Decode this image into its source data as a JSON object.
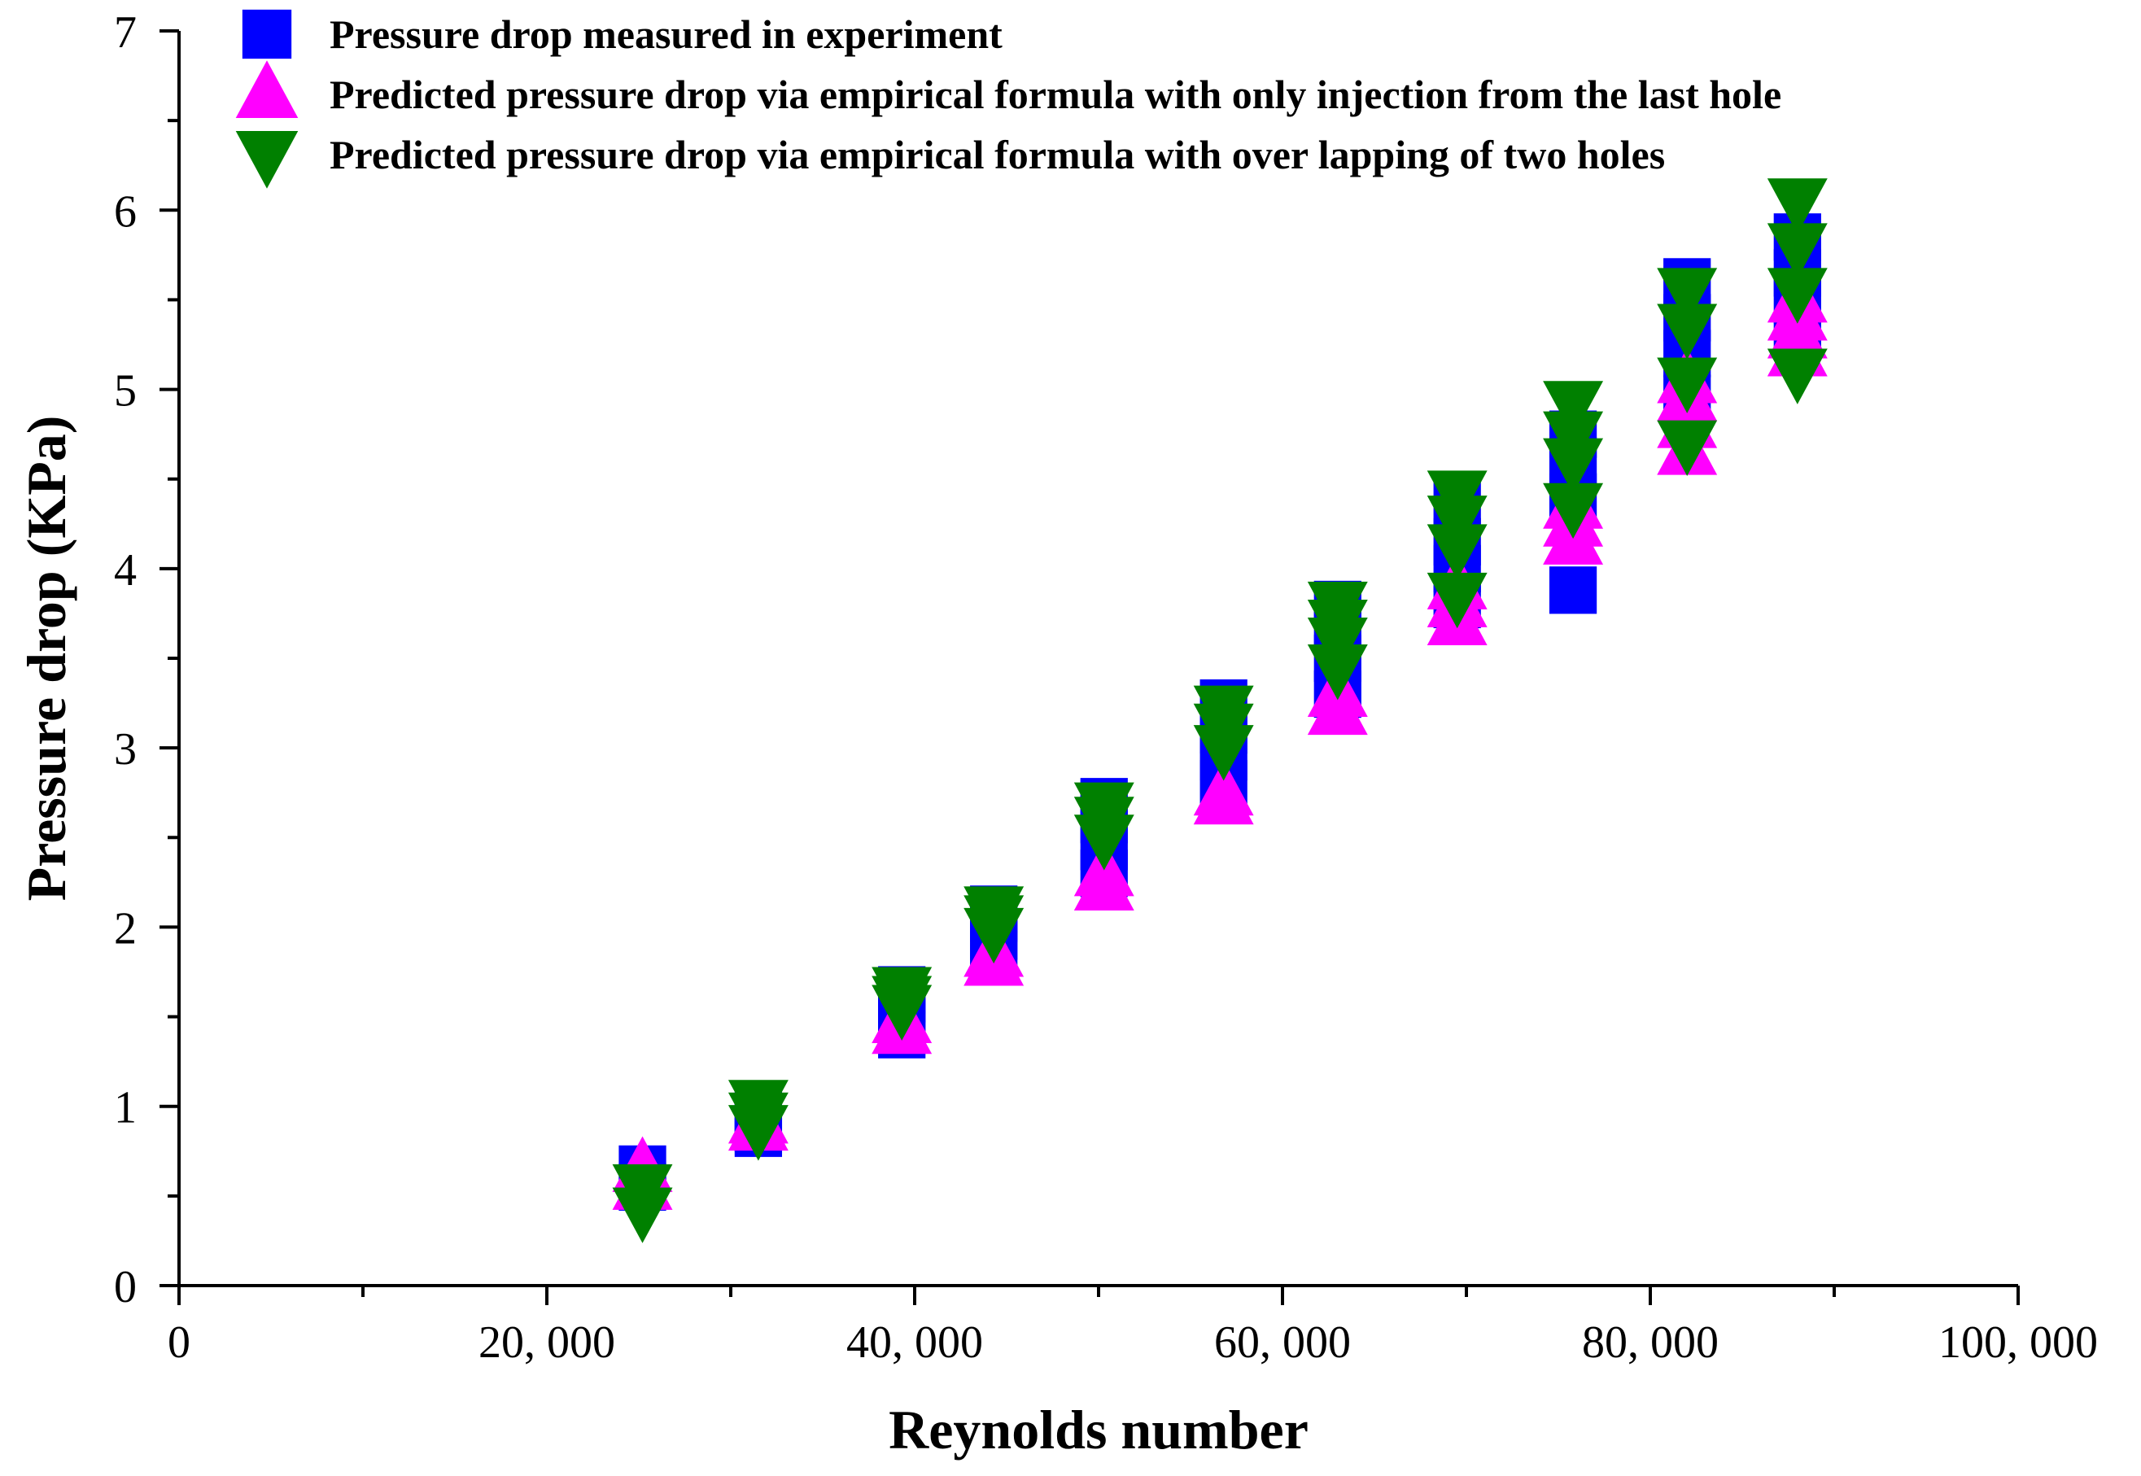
{
  "chart_data": {
    "type": "scatter",
    "title": "",
    "xlabel": "Reynolds number",
    "ylabel": "Pressure drop (KPa)",
    "xlim": [
      0,
      100000
    ],
    "ylim": [
      0,
      7
    ],
    "x_ticks": [
      0,
      20000,
      40000,
      60000,
      80000,
      100000
    ],
    "x_tick_labels": [
      "0",
      "20, 000",
      "40, 000",
      "60, 000",
      "80, 000",
      "100, 000"
    ],
    "y_ticks": [
      0,
      1,
      2,
      3,
      4,
      5,
      6,
      7
    ],
    "y_tick_labels": [
      "0",
      "1",
      "2",
      "3",
      "4",
      "5",
      "6",
      "7"
    ],
    "grid": false,
    "legend_position": "top-left",
    "series": [
      {
        "name": "Pressure drop measured in experiment",
        "marker": "square",
        "color": "#0000ff",
        "x": [
          25200,
          25200,
          31500,
          31500,
          31500,
          39300,
          39300,
          39300,
          39300,
          44300,
          44300,
          44300,
          44300,
          50300,
          50300,
          50300,
          50300,
          56800,
          56800,
          56800,
          56800,
          63000,
          63000,
          63000,
          63000,
          69500,
          69500,
          69500,
          69500,
          75800,
          75800,
          75800,
          75800,
          82000,
          82000,
          82000,
          82000,
          88000,
          88000,
          88000,
          88000
        ],
        "y": [
          0.65,
          0.55,
          0.95,
          0.88,
          0.85,
          1.4,
          1.5,
          1.6,
          1.65,
          1.85,
          1.95,
          2.05,
          2.1,
          2.3,
          2.45,
          2.6,
          2.7,
          2.8,
          2.95,
          3.1,
          3.25,
          3.3,
          3.5,
          3.65,
          3.8,
          3.8,
          4.0,
          4.15,
          4.35,
          3.88,
          4.4,
          4.6,
          4.75,
          4.95,
          5.2,
          5.4,
          5.6,
          5.3,
          5.5,
          5.65,
          5.85
        ]
      },
      {
        "name": "Predicted pressure drop via empirical formula with only injection from the last hole",
        "marker": "triangle-up",
        "color": "#ff00ff",
        "x": [
          25200,
          25200,
          31500,
          31500,
          39300,
          39300,
          44300,
          44300,
          50300,
          50300,
          56800,
          56800,
          63000,
          63000,
          69500,
          69500,
          69500,
          75800,
          75800,
          75800,
          82000,
          82000,
          82000,
          82000,
          88000,
          88000,
          88000,
          88000
        ],
        "y": [
          0.65,
          0.55,
          0.92,
          0.88,
          1.42,
          1.48,
          1.8,
          1.85,
          2.22,
          2.3,
          2.7,
          2.75,
          3.2,
          3.3,
          3.7,
          3.8,
          3.9,
          4.15,
          4.25,
          4.35,
          4.65,
          4.8,
          4.95,
          5.05,
          5.2,
          5.3,
          5.4,
          5.5
        ]
      },
      {
        "name": "Predicted pressure drop via empirical formula with over lapping of two holes",
        "marker": "triangle-down",
        "color": "#008000",
        "x": [
          25200,
          25200,
          31500,
          31500,
          31500,
          39300,
          39300,
          39300,
          44300,
          44300,
          44300,
          50300,
          50300,
          50300,
          56800,
          56800,
          56800,
          63000,
          63000,
          63000,
          63000,
          69500,
          69500,
          69500,
          69500,
          75800,
          75800,
          75800,
          75800,
          82000,
          82000,
          82000,
          82000,
          88000,
          88000,
          88000,
          88000
        ],
        "y": [
          0.55,
          0.42,
          1.02,
          0.95,
          0.88,
          1.65,
          1.6,
          1.55,
          2.1,
          2.05,
          1.98,
          2.68,
          2.6,
          2.5,
          3.22,
          3.12,
          3.0,
          3.8,
          3.7,
          3.6,
          3.45,
          4.42,
          4.28,
          4.12,
          3.85,
          4.92,
          4.75,
          4.6,
          4.35,
          5.55,
          5.35,
          5.05,
          4.7,
          6.05,
          5.8,
          5.55,
          5.1
        ]
      }
    ]
  }
}
